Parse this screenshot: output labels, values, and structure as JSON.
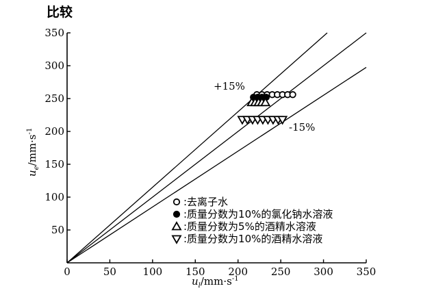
{
  "chart_data": {
    "type": "scatter",
    "title": "比较",
    "xlabel": "u",
    "xlabel_sub": "l",
    "xlabel_unit": "/mm·s",
    "xlabel_exp": "-1",
    "ylabel": "u",
    "ylabel_sub": "e",
    "ylabel_unit": "/mm·s",
    "ylabel_exp": "-1",
    "xlim": [
      0,
      350
    ],
    "ylim": [
      0,
      350
    ],
    "xticks": [
      "0",
      "50",
      "100",
      "150",
      "200",
      "250",
      "300",
      "350"
    ],
    "yticks": [
      "50",
      "100",
      "150",
      "200",
      "250",
      "300",
      "350"
    ],
    "reference_lines": [
      {
        "label": "+15%",
        "slope": 1.15
      },
      {
        "label": "",
        "slope": 1.0
      },
      {
        "label": "-15%",
        "slope": 0.85
      }
    ],
    "series": [
      {
        "name": "去离子水",
        "marker": "circle-open",
        "x": [
          222,
          228,
          234,
          240,
          246,
          252,
          258,
          264
        ],
        "y": [
          256,
          256,
          256,
          256,
          256,
          256,
          256,
          256
        ]
      },
      {
        "name": "质量分数为10%的氯化钠水溶液",
        "marker": "circle-filled",
        "x": [
          218,
          223,
          228,
          233
        ],
        "y": [
          252,
          252,
          252,
          252
        ]
      },
      {
        "name": "质量分数为5%的酒精水溶液",
        "marker": "triangle-up",
        "x": [
          216,
          220,
          224,
          228,
          232
        ],
        "y": [
          244,
          244,
          244,
          244,
          244
        ]
      },
      {
        "name": "质量分数为10%的酒精水溶液",
        "marker": "triangle-down",
        "x": [
          205,
          211,
          217,
          223,
          229,
          235,
          241,
          247,
          252
        ],
        "y": [
          218,
          218,
          218,
          218,
          218,
          218,
          218,
          218,
          218
        ]
      }
    ],
    "grid": false,
    "legend_position": "bottom-right"
  }
}
